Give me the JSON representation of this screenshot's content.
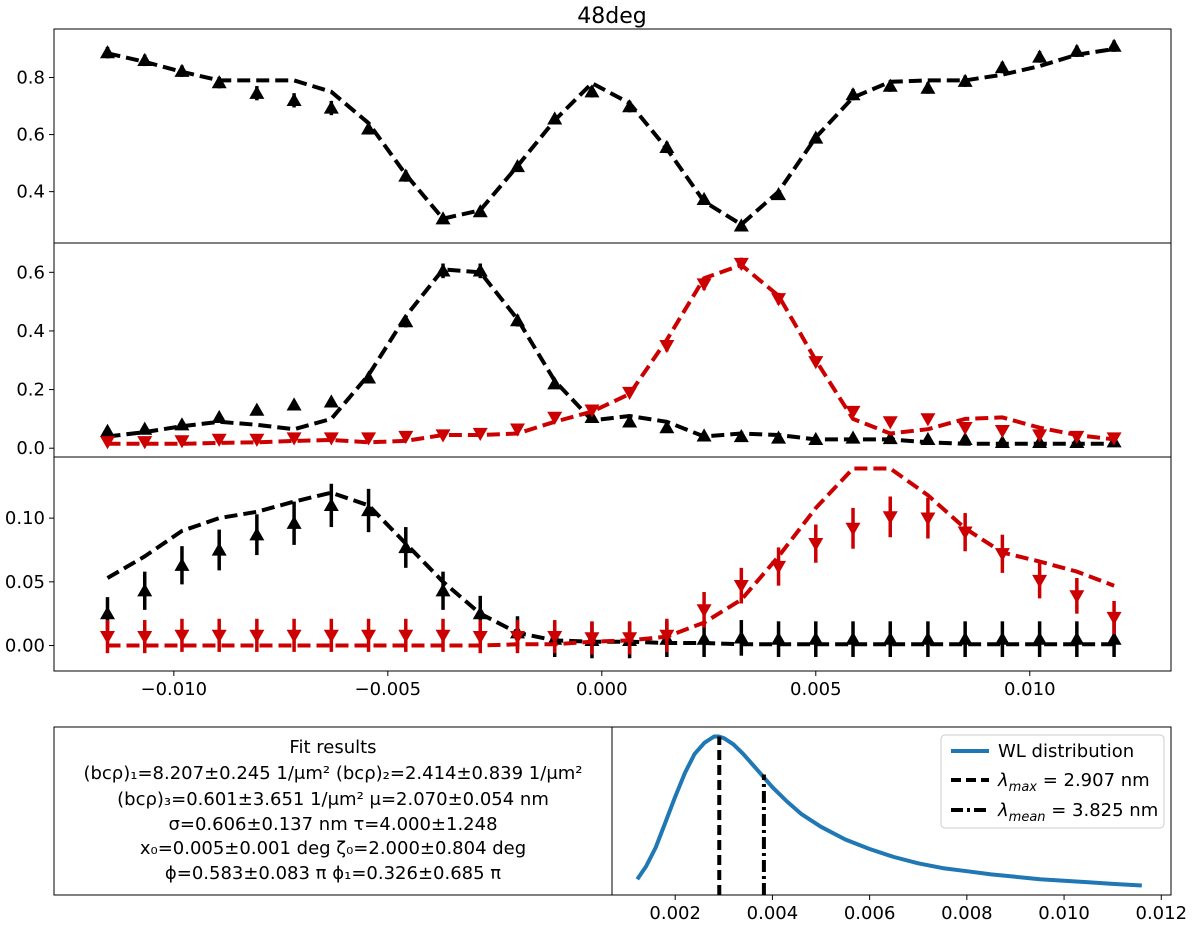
{
  "figure_title": "48deg",
  "colors": {
    "black": "#000000",
    "red": "#cc0000",
    "blue": "#1f77b4"
  },
  "chart_data": [
    {
      "id": "panel1",
      "type": "line",
      "xlim": [
        -0.0128,
        0.0133
      ],
      "ylim": [
        0.22,
        0.97
      ],
      "yticks": [
        0.4,
        0.6,
        0.8
      ],
      "ytick_labels": [
        "0.4",
        "0.6",
        "0.8"
      ],
      "x": [
        -0.01155,
        -0.01068,
        -0.00981,
        -0.00894,
        -0.00806,
        -0.00719,
        -0.00632,
        -0.00545,
        -0.00458,
        -0.00371,
        -0.00284,
        -0.00197,
        -0.0011,
        -0.00023,
        0.00065,
        0.00152,
        0.00239,
        0.00326,
        0.00413,
        0.005,
        0.00587,
        0.00674,
        0.00762,
        0.00849,
        0.00936,
        0.01023,
        0.0111,
        0.01197
      ],
      "series": [
        {
          "name": "data",
          "color": "#000000",
          "marker": "triangle-up",
          "y": [
            0.887,
            0.86,
            0.822,
            0.782,
            0.745,
            0.72,
            0.693,
            0.62,
            0.455,
            0.305,
            0.33,
            0.488,
            0.655,
            0.75,
            0.698,
            0.555,
            0.373,
            0.28,
            0.39,
            0.588,
            0.74,
            0.77,
            0.763,
            0.787,
            0.835,
            0.872,
            0.892,
            0.91
          ],
          "err": [
            0.02,
            0.02,
            0.02,
            0.02,
            0.025,
            0.025,
            0.025,
            0.02,
            0.02,
            0.01,
            0.01,
            0.01,
            0.01,
            0.02,
            0.02,
            0.02,
            0.01,
            0.01,
            0.01,
            0.01,
            0.02,
            0.02,
            0.02,
            0.02,
            0.02,
            0.02,
            0.02,
            0.02
          ]
        },
        {
          "name": "fit",
          "color": "#000000",
          "style": "dashed",
          "y": [
            0.885,
            0.855,
            0.82,
            0.79,
            0.79,
            0.79,
            0.75,
            0.64,
            0.46,
            0.305,
            0.335,
            0.49,
            0.65,
            0.78,
            0.71,
            0.55,
            0.365,
            0.285,
            0.4,
            0.59,
            0.73,
            0.785,
            0.79,
            0.79,
            0.81,
            0.84,
            0.88,
            0.9
          ]
        }
      ]
    },
    {
      "id": "panel2",
      "type": "line",
      "xlim": [
        -0.0128,
        0.0133
      ],
      "ylim": [
        -0.03,
        0.7
      ],
      "yticks": [
        0.0,
        0.2,
        0.4,
        0.6
      ],
      "ytick_labels": [
        "0.0",
        "0.2",
        "0.4",
        "0.6"
      ],
      "x": [
        -0.01155,
        -0.01068,
        -0.00981,
        -0.00894,
        -0.00806,
        -0.00719,
        -0.00632,
        -0.00545,
        -0.00458,
        -0.00371,
        -0.00284,
        -0.00197,
        -0.0011,
        -0.00023,
        0.00065,
        0.00152,
        0.00239,
        0.00326,
        0.00413,
        0.005,
        0.00587,
        0.00674,
        0.00762,
        0.00849,
        0.00936,
        0.01023,
        0.0111,
        0.01197
      ],
      "series": [
        {
          "name": "black data",
          "color": "#000000",
          "marker": "triangle-up",
          "y": [
            0.058,
            0.065,
            0.08,
            0.105,
            0.13,
            0.148,
            0.158,
            0.24,
            0.432,
            0.605,
            0.605,
            0.435,
            0.22,
            0.105,
            0.09,
            0.07,
            0.042,
            0.04,
            0.035,
            0.03,
            0.035,
            0.033,
            0.03,
            0.03,
            0.02,
            0.02,
            0.02,
            0.022
          ],
          "err": [
            0.01,
            0.01,
            0.01,
            0.01,
            0.01,
            0.01,
            0.01,
            0.015,
            0.02,
            0.025,
            0.025,
            0.02,
            0.015,
            0.01,
            0.01,
            0.01,
            0.01,
            0.01,
            0.01,
            0.01,
            0.01,
            0.01,
            0.01,
            0.01,
            0.01,
            0.01,
            0.01,
            0.01
          ]
        },
        {
          "name": "black fit",
          "color": "#000000",
          "style": "dashed",
          "y": [
            0.04,
            0.055,
            0.075,
            0.09,
            0.08,
            0.065,
            0.1,
            0.25,
            0.45,
            0.61,
            0.6,
            0.44,
            0.23,
            0.095,
            0.11,
            0.09,
            0.04,
            0.05,
            0.045,
            0.03,
            0.03,
            0.03,
            0.02,
            0.015,
            0.015,
            0.015,
            0.015,
            0.015
          ]
        },
        {
          "name": "red data",
          "color": "#cc0000",
          "marker": "triangle-down",
          "y": [
            0.022,
            0.022,
            0.025,
            0.03,
            0.03,
            0.035,
            0.035,
            0.035,
            0.04,
            0.045,
            0.05,
            0.065,
            0.105,
            0.13,
            0.19,
            0.35,
            0.56,
            0.63,
            0.51,
            0.295,
            0.125,
            0.09,
            0.1,
            0.07,
            0.06,
            0.045,
            0.04,
            0.035
          ],
          "err": [
            0.01,
            0.01,
            0.01,
            0.01,
            0.01,
            0.01,
            0.01,
            0.01,
            0.01,
            0.01,
            0.01,
            0.01,
            0.01,
            0.01,
            0.015,
            0.02,
            0.02,
            0.02,
            0.02,
            0.015,
            0.01,
            0.01,
            0.01,
            0.01,
            0.01,
            0.01,
            0.01,
            0.01
          ]
        },
        {
          "name": "red fit",
          "color": "#cc0000",
          "style": "dashed",
          "y": [
            0.015,
            0.015,
            0.015,
            0.018,
            0.02,
            0.025,
            0.028,
            0.02,
            0.025,
            0.045,
            0.045,
            0.05,
            0.09,
            0.125,
            0.185,
            0.37,
            0.58,
            0.625,
            0.52,
            0.3,
            0.1,
            0.05,
            0.065,
            0.1,
            0.105,
            0.07,
            0.045,
            0.03
          ]
        }
      ]
    },
    {
      "id": "panel3",
      "type": "line",
      "xlim": [
        -0.0128,
        0.0133
      ],
      "ylim": [
        -0.02,
        0.148
      ],
      "yticks": [
        0.0,
        0.05,
        0.1
      ],
      "ytick_labels": [
        "0.00",
        "0.05",
        "0.10"
      ],
      "x": [
        -0.01155,
        -0.01068,
        -0.00981,
        -0.00894,
        -0.00806,
        -0.00719,
        -0.00632,
        -0.00545,
        -0.00458,
        -0.00371,
        -0.00284,
        -0.00197,
        -0.0011,
        -0.00023,
        0.00065,
        0.00152,
        0.00239,
        0.00326,
        0.00413,
        0.005,
        0.00587,
        0.00674,
        0.00762,
        0.00849,
        0.00936,
        0.01023,
        0.0111,
        0.01197
      ],
      "series": [
        {
          "name": "black data",
          "color": "#000000",
          "marker": "triangle-up",
          "y": [
            0.025,
            0.043,
            0.063,
            0.075,
            0.087,
            0.096,
            0.11,
            0.106,
            0.077,
            0.043,
            0.025,
            0.01,
            0.005,
            0.004,
            0.004,
            0.005,
            0.005,
            0.006,
            0.005,
            0.005,
            0.005,
            0.005,
            0.005,
            0.005,
            0.005,
            0.005,
            0.005,
            0.005
          ],
          "err": [
            0.013,
            0.015,
            0.015,
            0.016,
            0.016,
            0.017,
            0.017,
            0.017,
            0.016,
            0.015,
            0.014,
            0.013,
            0.014,
            0.014,
            0.014,
            0.014,
            0.014,
            0.014,
            0.014,
            0.014,
            0.014,
            0.014,
            0.014,
            0.014,
            0.014,
            0.014,
            0.014,
            0.014
          ]
        },
        {
          "name": "black fit",
          "color": "#000000",
          "style": "dashed",
          "y": [
            0.053,
            0.07,
            0.09,
            0.1,
            0.105,
            0.113,
            0.12,
            0.11,
            0.08,
            0.05,
            0.025,
            0.01,
            0.004,
            0.003,
            0.003,
            0.002,
            0.002,
            0.001,
            0.001,
            0.001,
            0.001,
            0.001,
            0.001,
            0.001,
            0.001,
            0.001,
            0.001,
            0.001
          ]
        },
        {
          "name": "red data",
          "color": "#cc0000",
          "marker": "triangle-down",
          "y": [
            0.007,
            0.007,
            0.008,
            0.008,
            0.008,
            0.008,
            0.008,
            0.008,
            0.008,
            0.008,
            0.007,
            0.007,
            0.007,
            0.006,
            0.006,
            0.008,
            0.028,
            0.047,
            0.062,
            0.08,
            0.092,
            0.101,
            0.1,
            0.089,
            0.072,
            0.051,
            0.039,
            0.022
          ],
          "err": [
            0.013,
            0.013,
            0.013,
            0.013,
            0.013,
            0.013,
            0.013,
            0.013,
            0.013,
            0.013,
            0.013,
            0.013,
            0.013,
            0.013,
            0.013,
            0.013,
            0.014,
            0.014,
            0.015,
            0.015,
            0.016,
            0.016,
            0.016,
            0.015,
            0.015,
            0.014,
            0.014,
            0.013
          ]
        },
        {
          "name": "red fit",
          "color": "#cc0000",
          "style": "dashed",
          "y": [
            0.0,
            0.0,
            0.0,
            0.0,
            0.0,
            0.0,
            0.0,
            0.0,
            0.0,
            0.0,
            0.0,
            0.001,
            0.001,
            0.003,
            0.004,
            0.007,
            0.018,
            0.036,
            0.07,
            0.108,
            0.139,
            0.139,
            0.118,
            0.092,
            0.073,
            0.066,
            0.058,
            0.047
          ]
        }
      ],
      "xticks": [
        -0.01,
        -0.005,
        0.0,
        0.005,
        0.01
      ],
      "xtick_labels": [
        "−0.010",
        "−0.005",
        "0.000",
        "0.005",
        "0.010"
      ]
    },
    {
      "id": "wl_panel",
      "type": "line",
      "xlim": [
        0.0007,
        0.0122
      ],
      "ylim": [
        0.0,
        1.06
      ],
      "xticks": [
        0.002,
        0.004,
        0.006,
        0.008,
        0.01,
        0.012
      ],
      "xtick_labels": [
        "0.002",
        "0.004",
        "0.006",
        "0.008",
        "0.010",
        "0.012"
      ],
      "x": [
        0.00122,
        0.0014,
        0.0016,
        0.0018,
        0.002,
        0.0022,
        0.0024,
        0.0026,
        0.0028,
        0.0029,
        0.003,
        0.0032,
        0.0034,
        0.0036,
        0.0038,
        0.004,
        0.0043,
        0.0046,
        0.005,
        0.0055,
        0.006,
        0.0065,
        0.007,
        0.0075,
        0.008,
        0.0085,
        0.009,
        0.0095,
        0.01,
        0.0105,
        0.011,
        0.0116
      ],
      "series": [
        {
          "name": "WL distribution",
          "color": "#1f77b4",
          "y": [
            0.1,
            0.18,
            0.3,
            0.46,
            0.62,
            0.77,
            0.89,
            0.96,
            1.0,
            1.0,
            0.99,
            0.95,
            0.89,
            0.82,
            0.75,
            0.68,
            0.59,
            0.51,
            0.43,
            0.35,
            0.29,
            0.24,
            0.2,
            0.17,
            0.15,
            0.13,
            0.115,
            0.1,
            0.09,
            0.08,
            0.07,
            0.06
          ]
        }
      ],
      "vlines": [
        {
          "name": "lambda_max",
          "x": 0.002907,
          "y_top": 1.0,
          "style": "dashed"
        },
        {
          "name": "lambda_mean",
          "x": 0.003825,
          "y_top": 0.76,
          "style": "dashdot"
        }
      ],
      "legend": {
        "position": "top-right",
        "entries": [
          {
            "label": "WL distribution",
            "style": "solid",
            "color": "#1f77b4"
          },
          {
            "label_prefix": "λ",
            "label_sub": "max",
            "label_value": " = 2.907 nm",
            "style": "dashed",
            "color": "#000000"
          },
          {
            "label_prefix": "λ",
            "label_sub": "mean",
            "label_value": " = 3.825 nm",
            "style": "dashdot",
            "color": "#000000"
          }
        ]
      }
    }
  ],
  "fit_results": {
    "title": "Fit results",
    "lines": [
      "(bᴄρ)₁=8.207±0.245 1/μm²      (bᴄρ)₂=2.414±0.839 1/μm²",
      "(bᴄρ)₃=0.601±3.651 1/μm²      μ=2.070±0.054 nm",
      "σ=0.606±0.137 nm     τ=4.000±1.248",
      "x₀=0.005±0.001 deg       ζ₀=2.000±0.804  deg",
      "ϕ=0.583±0.083 π    ϕ₁=0.326±0.685 π"
    ]
  }
}
